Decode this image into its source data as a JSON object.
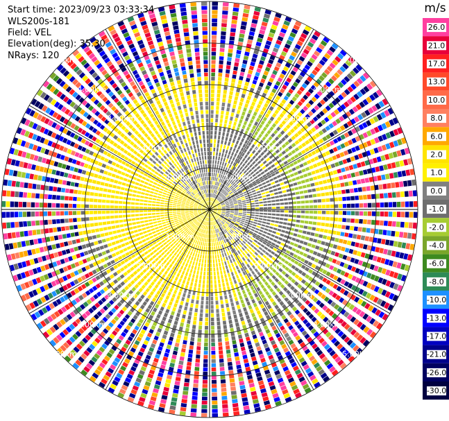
{
  "header": {
    "start_time": "Start time: 2023/09/23 03:33:34",
    "instrument": "WLS200s-181",
    "field": "Field: VEL",
    "elevation": "Elevation(deg): 35.30",
    "nrays": "NRays: 120"
  },
  "colorbar": {
    "unit": "m/s",
    "labels": [
      "26.0",
      "21.0",
      "17.0",
      "13.0",
      "10.0",
      "8.0",
      "6.0",
      "2.0",
      "1.0",
      "0.0",
      "-1.0",
      "-2.0",
      "-4.0",
      "-6.0",
      "-8.0",
      "-10.0",
      "-13.0",
      "-17.0",
      "-21.0",
      "-26.0",
      "-30.0"
    ],
    "colors": [
      "#ff3fa0",
      "#e8003a",
      "#ff2020",
      "#ff4a2a",
      "#ff6a48",
      "#ff8060",
      "#ffa800",
      "#ffe400",
      "#fff000",
      "#808080",
      "#6e6e6e",
      "#a6cc32",
      "#7aa62a",
      "#3d8a20",
      "#2e8b57",
      "#1e90ff",
      "#0000ff",
      "#0000c0",
      "#00008b",
      "#000060",
      "#000040"
    ]
  },
  "chart_data": {
    "type": "ppi",
    "field": "VEL",
    "units": "m/s",
    "range_rings_km": [
      1.0,
      2.0,
      3.0,
      4.0,
      5.0
    ],
    "ring_labels": [
      "1.00km",
      "2.00km",
      "3.00km",
      "4.00km",
      "5.00km"
    ],
    "max_range_km": 5.0,
    "nrays": 120,
    "value_range": [
      -30.0,
      26.0
    ],
    "layers": [
      {
        "range_km": [
          0.0,
          1.0
        ],
        "pattern": "dipole",
        "values": [
          0.0,
          -2.0,
          2.0
        ]
      },
      {
        "range_km": [
          1.0,
          2.0
        ],
        "pattern": "dipole",
        "values": [
          0.0,
          -2.0,
          2.0
        ]
      },
      {
        "range_km": [
          2.0,
          2.6
        ],
        "pattern": "mixed",
        "values": [
          -1.0,
          -2.0,
          -4.0,
          1.0,
          2.0
        ]
      },
      {
        "range_km": [
          2.6,
          3.2
        ],
        "pattern": "ring",
        "values": [
          2.0,
          1.0,
          -2.0,
          -4.0
        ]
      },
      {
        "range_km": [
          3.2,
          5.0
        ],
        "pattern": "noise",
        "values": [
          -30.0,
          26.0
        ]
      }
    ],
    "grid": true
  }
}
